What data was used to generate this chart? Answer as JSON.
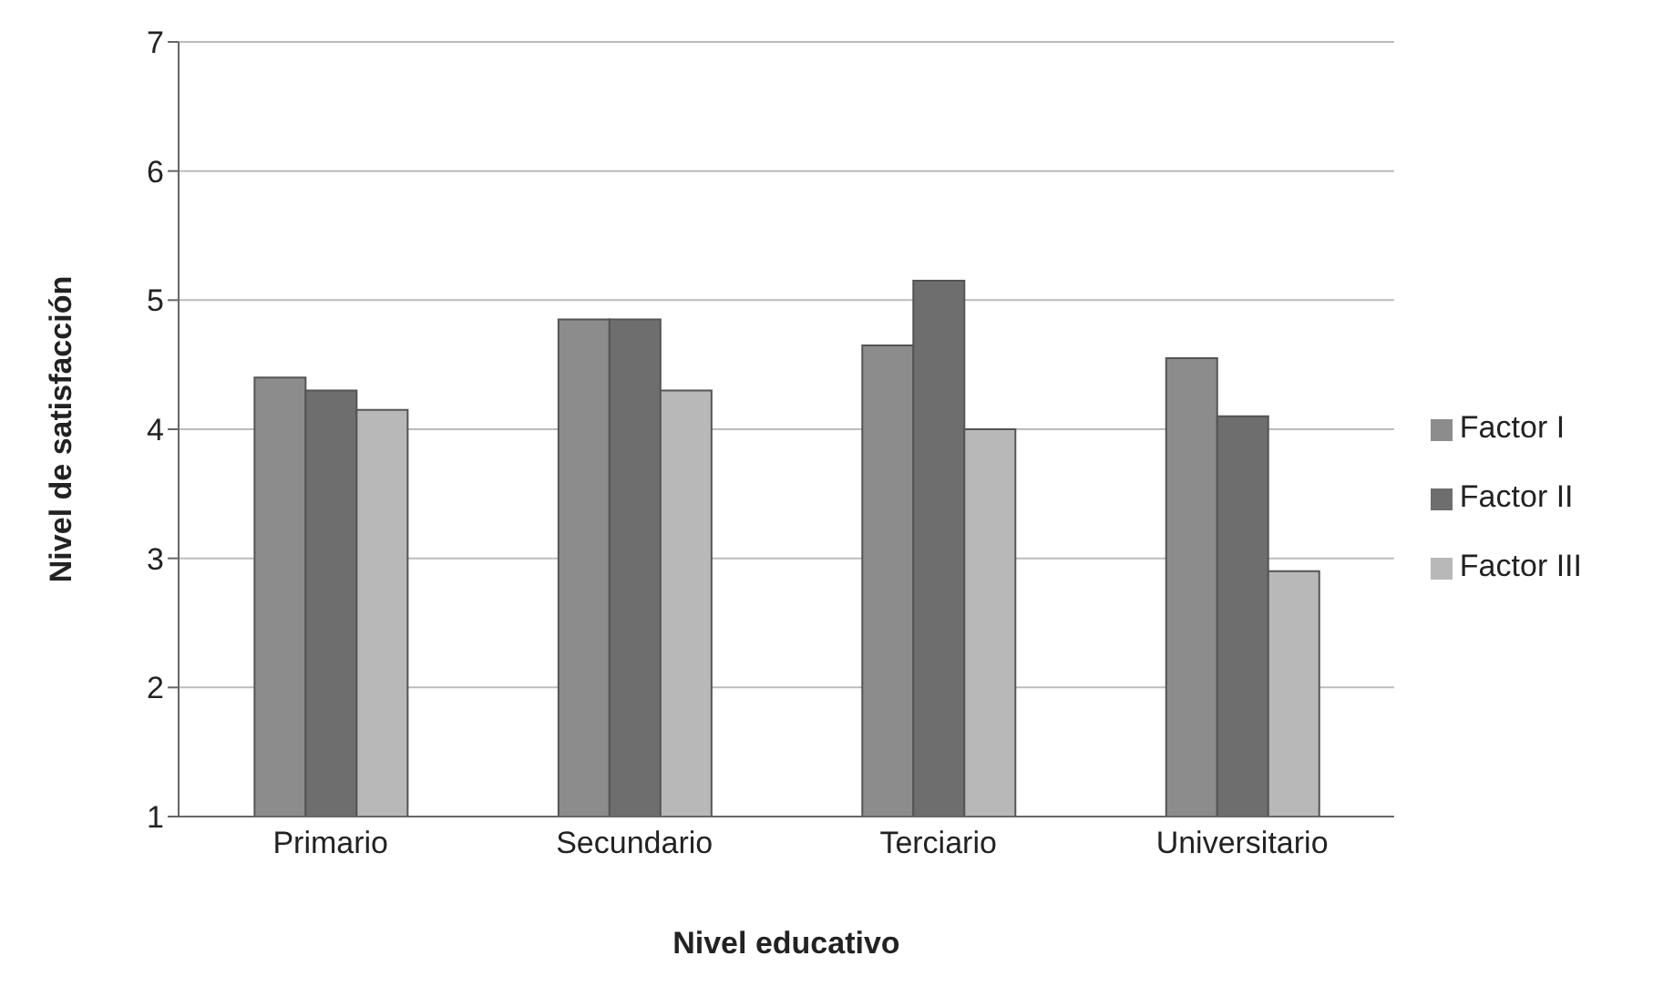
{
  "chart_data": {
    "type": "bar",
    "xlabel": "Nivel educativo",
    "ylabel": "Nivel de satisfacción",
    "categories": [
      "Primario",
      "Secundario",
      "Terciario",
      "Universitario"
    ],
    "series": [
      {
        "name": "Factor I",
        "color": "#8c8c8c",
        "values": [
          4.4,
          4.85,
          4.65,
          4.55
        ]
      },
      {
        "name": "Factor II",
        "color": "#6e6e6e",
        "values": [
          4.3,
          4.85,
          5.15,
          4.1
        ]
      },
      {
        "name": "Factor III",
        "color": "#b8b8b8",
        "values": [
          4.15,
          4.3,
          4.0,
          2.9
        ]
      }
    ],
    "ylim": [
      1,
      7
    ],
    "yticks": [
      1,
      2,
      3,
      4,
      5,
      6,
      7
    ],
    "grid": "y",
    "legend": "right"
  }
}
